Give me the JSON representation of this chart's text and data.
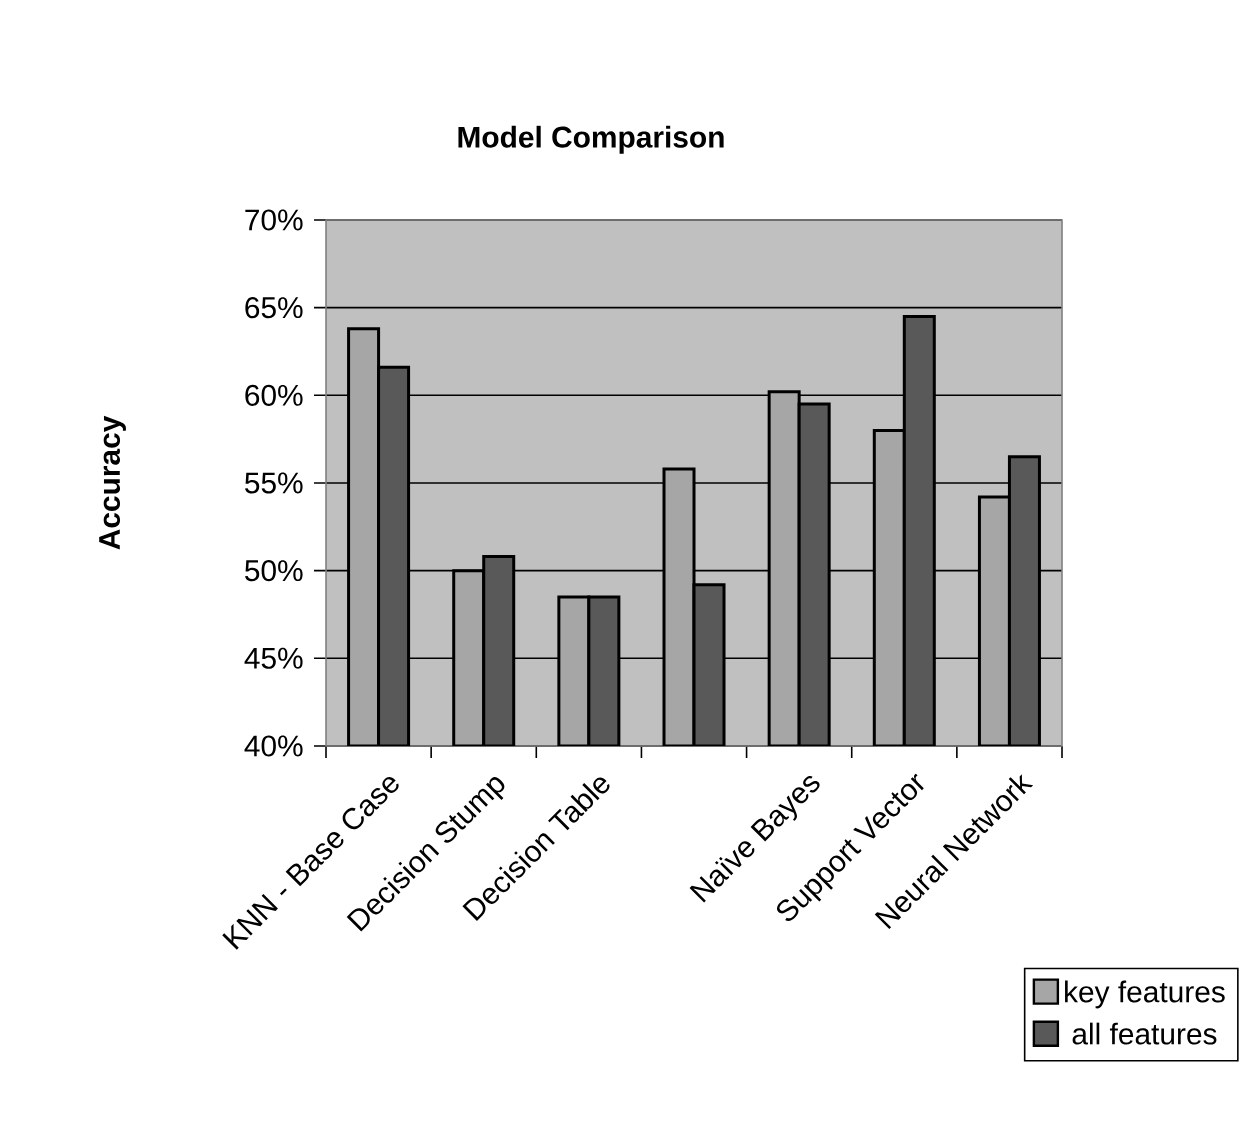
{
  "chart_data": {
    "type": "bar",
    "title": "Model Comparison",
    "ylabel": "Accuracy",
    "categories": [
      "KNN - Base Case",
      "Decision Stump",
      "Decision Table",
      null,
      "Naïve Bayes",
      "Support Vector",
      "Neural Network"
    ],
    "series": [
      {
        "name": "key features",
        "color": "#a6a6a6",
        "values": [
          63.8,
          50.0,
          48.5,
          55.8,
          60.2,
          58.0,
          54.2
        ]
      },
      {
        "name": "all features",
        "color": "#595959",
        "values": [
          61.6,
          50.8,
          48.5,
          49.2,
          59.5,
          64.5,
          56.5
        ]
      }
    ],
    "ylim": [
      40,
      70
    ],
    "yticks": [
      {
        "value": 40,
        "label": "40%"
      },
      {
        "value": 45,
        "label": "45%"
      },
      {
        "value": 50,
        "label": "50%"
      },
      {
        "value": 55,
        "label": "55%"
      },
      {
        "value": 60,
        "label": "60%"
      },
      {
        "value": 65,
        "label": "65%"
      },
      {
        "value": 70,
        "label": "70%"
      }
    ],
    "grid": "y",
    "legend": "bottom right"
  }
}
